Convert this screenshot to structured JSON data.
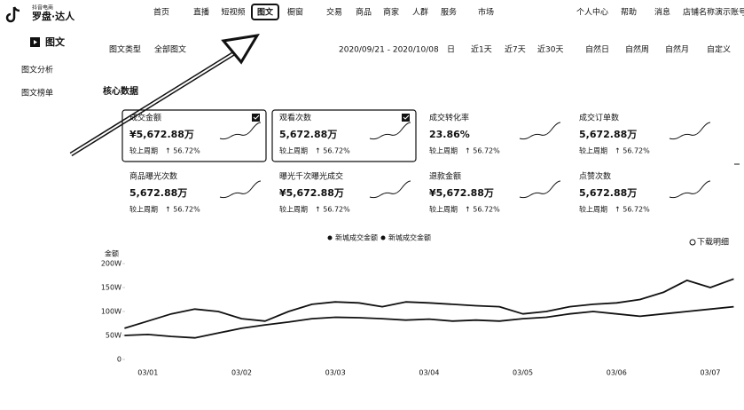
{
  "header": {
    "brand_small": "抖音电商",
    "brand": "罗盘·达人",
    "nav": [
      "首页",
      "直播",
      "短视频",
      "图文",
      "橱窗",
      "交易",
      "商品",
      "商家",
      "人群",
      "服务",
      "市场"
    ],
    "selected_nav": 3,
    "user_links": [
      "个人中心",
      "帮助",
      "消息"
    ],
    "account": "店铺名称演示账号"
  },
  "sidebar": {
    "title": "图文",
    "items": [
      "图文分析",
      "图文榜单"
    ]
  },
  "filters": {
    "type_label": "图文类型",
    "type_value": "全部图文",
    "date_range": "2020/09/21 - 2020/10/08",
    "date_unit": "日",
    "periods": [
      "近1天",
      "近7天",
      "近30天",
      "自然日",
      "自然周",
      "自然月",
      "自定义"
    ]
  },
  "core": {
    "title": "核心数据",
    "cards": [
      {
        "name": "成交金额",
        "value": "¥5,672.88万",
        "compare_label": "较上周期",
        "change": "↑ 56.72%",
        "checked": true
      },
      {
        "name": "观看次数",
        "value": "5,672.88万",
        "compare_label": "较上周期",
        "change": "↑ 56.72%",
        "checked": true
      },
      {
        "name": "成交转化率",
        "value": "23.86%",
        "compare_label": "较上周期",
        "change": "↑ 56.72%",
        "checked": false
      },
      {
        "name": "成交订单数",
        "value": "5,672.88万",
        "compare_label": "较上周期",
        "change": "↑ 56.72%",
        "checked": false
      },
      {
        "name": "商品曝光次数",
        "value": "5,672.88万",
        "compare_label": "较上周期",
        "change": "↑ 56.72%",
        "checked": false
      },
      {
        "name": "曝光千次曝光成交",
        "value": "¥5,672.88万",
        "compare_label": "较上周期",
        "change": "↑ 56.72%",
        "checked": false
      },
      {
        "name": "退款金额",
        "value": "¥5,672.88万",
        "compare_label": "较上周期",
        "change": "↑ 56.72%",
        "checked": false
      },
      {
        "name": "点赞次数",
        "value": "5,672.88万",
        "compare_label": "较上周期",
        "change": "↑ 56.72%",
        "checked": false
      }
    ]
  },
  "download": "下载明细",
  "chart_data": {
    "type": "line",
    "y_label": "金额",
    "categories": [
      null,
      "03/01",
      null,
      null,
      null,
      "03/02",
      null,
      null,
      null,
      "03/03",
      null,
      null,
      null,
      "03/04",
      null,
      null,
      null,
      "03/05",
      null,
      null,
      null,
      "03/06",
      null,
      null,
      null,
      "03/07",
      null
    ],
    "series": [
      {
        "name": "新城成交金额",
        "color": "#111111",
        "values": [
          65,
          80,
          95,
          105,
          100,
          85,
          80,
          100,
          115,
          120,
          118,
          110,
          120,
          118,
          115,
          112,
          110,
          95,
          100,
          110,
          115,
          118,
          125,
          140,
          165,
          150,
          168
        ]
      },
      {
        "name": "新城成交金额",
        "color": "#111111",
        "values": [
          50,
          52,
          48,
          45,
          55,
          65,
          72,
          78,
          85,
          88,
          87,
          85,
          82,
          84,
          80,
          82,
          80,
          85,
          88,
          95,
          100,
          95,
          90,
          95,
          100,
          105,
          110
        ]
      }
    ],
    "ylim": [
      0,
      200
    ],
    "yticks": [
      0,
      {
        "value": 50,
        "label": "50W"
      },
      {
        "value": 100,
        "label": "100W"
      },
      {
        "value": 150,
        "label": "150W"
      },
      {
        "value": 200,
        "label": "200W"
      }
    ],
    "grid": false,
    "legend": "top"
  }
}
